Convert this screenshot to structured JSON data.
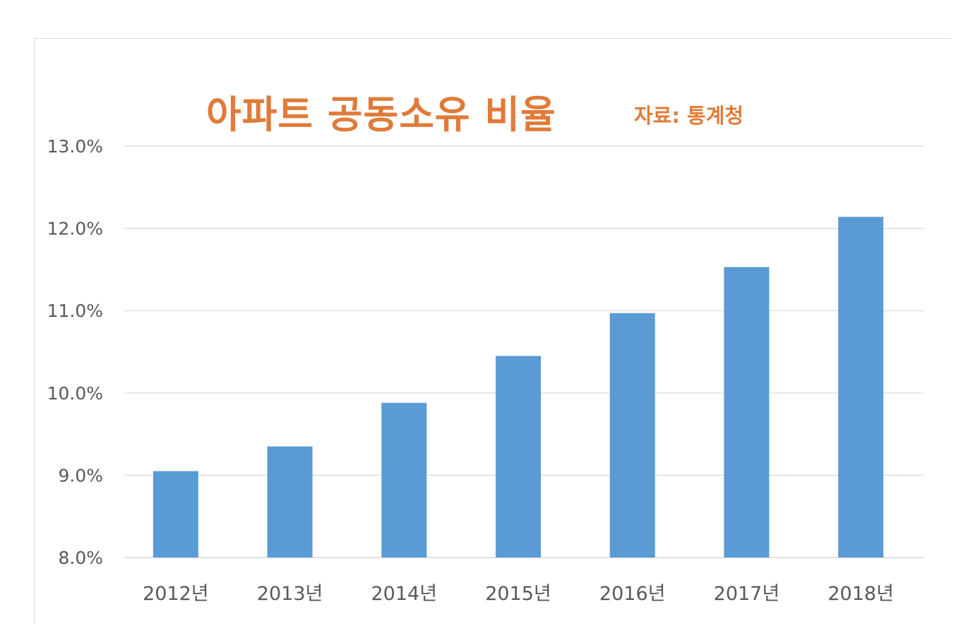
{
  "chart_data": {
    "type": "bar",
    "title": "아파트 공동소유 비율",
    "source": "자료: 통계청",
    "categories": [
      "2012년",
      "2013년",
      "2014년",
      "2015년",
      "2016년",
      "2017년",
      "2018년"
    ],
    "values": [
      9.05,
      9.35,
      9.88,
      10.45,
      10.97,
      11.53,
      12.14
    ],
    "ylim": [
      8.0,
      13.0
    ],
    "yticks": [
      "8.0%",
      "9.0%",
      "10.0%",
      "11.0%",
      "12.0%",
      "13.0%"
    ],
    "ytick_values": [
      8,
      9,
      10,
      11,
      12,
      13
    ],
    "xlabel": "",
    "ylabel": "",
    "grid": true,
    "legend": "none",
    "bar_color": "#5b9bd5",
    "grid_color": "#d9d9d9",
    "title_color": "#e07b39"
  }
}
